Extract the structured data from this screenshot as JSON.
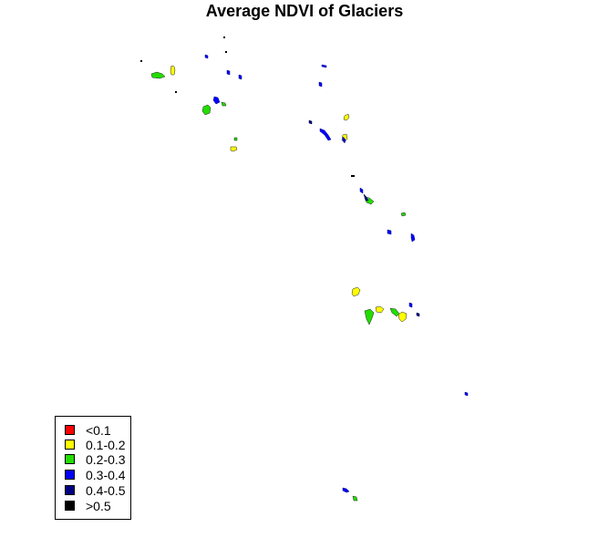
{
  "title": "Average NDVI of Glaciers",
  "legend": [
    {
      "label": "<0.1",
      "color": "#ff0000"
    },
    {
      "label": "0.1-0.2",
      "color": "#ffff00"
    },
    {
      "label": "0.2-0.3",
      "color": "#22dd00"
    },
    {
      "label": "0.3-0.4",
      "color": "#0000ff"
    },
    {
      "label": "0.4-0.5",
      "color": "#000080"
    },
    {
      "label": ">0.5",
      "color": "#000000"
    }
  ]
}
